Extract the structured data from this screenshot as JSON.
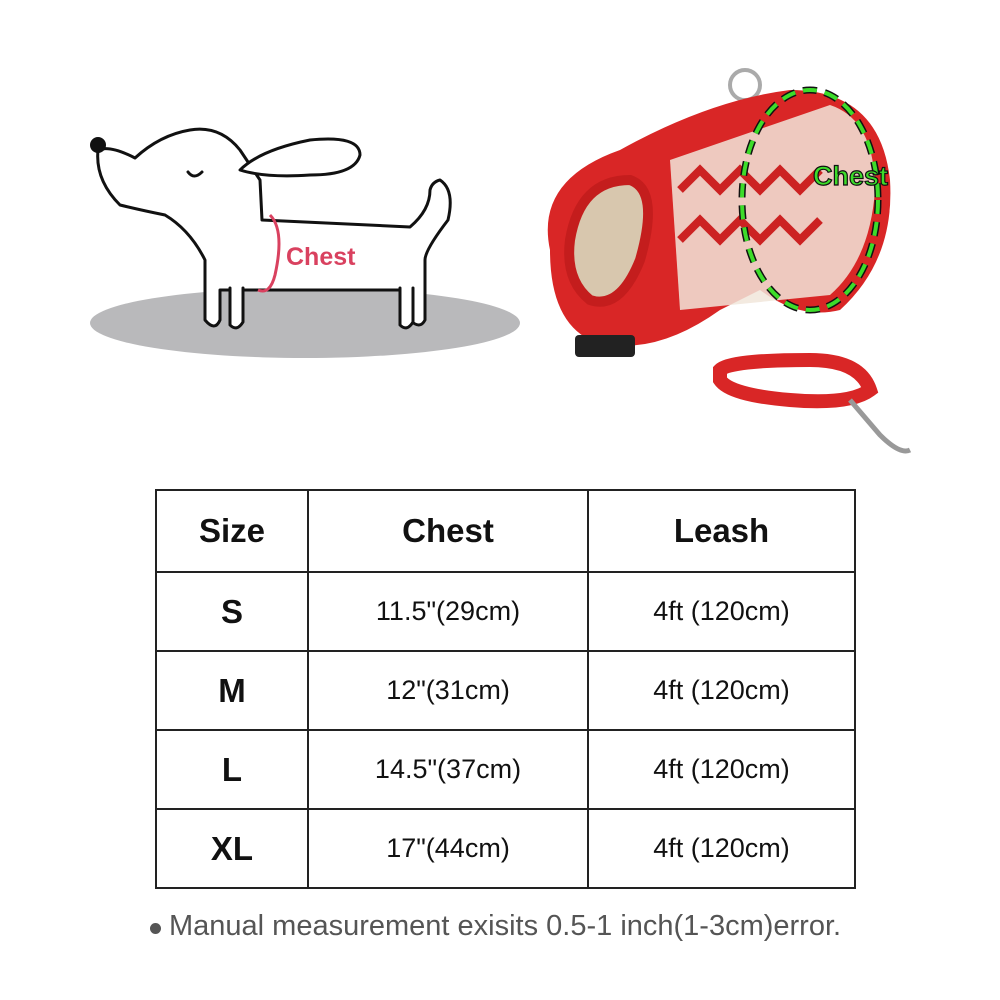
{
  "illustration": {
    "dog_label": "Chest",
    "harness_label": "Chest",
    "dog_label_color": "#d9415f",
    "harness_label_color": "#3ddc2a",
    "harness_color": "#d92626"
  },
  "table": {
    "headers": [
      "Size",
      "Chest",
      "Leash"
    ],
    "rows": [
      {
        "size": "S",
        "chest": "11.5\"(29cm)",
        "leash": "4ft (120cm)"
      },
      {
        "size": "M",
        "chest": "12\"(31cm)",
        "leash": "4ft (120cm)"
      },
      {
        "size": "L",
        "chest": "14.5\"(37cm)",
        "leash": "4ft (120cm)"
      },
      {
        "size": "XL",
        "chest": "17\"(44cm)",
        "leash": "4ft (120cm)"
      }
    ]
  },
  "note": "Manual measurement exisits 0.5-1 inch(1-3cm)error."
}
